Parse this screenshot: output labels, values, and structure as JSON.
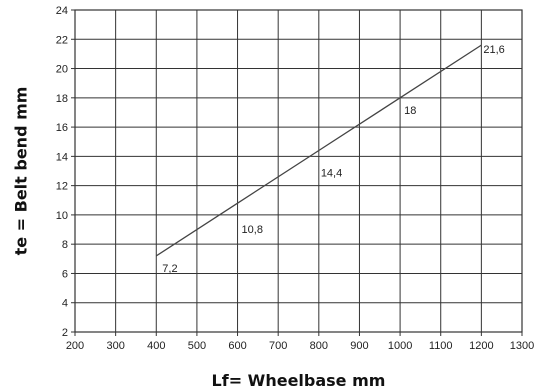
{
  "chart_data": {
    "type": "line",
    "title": "",
    "xlabel": "Lf= Wheelbase mm",
    "ylabel": "te = Belt bend mm",
    "xlim": [
      200,
      1300
    ],
    "ylim": [
      2,
      24
    ],
    "x_ticks": [
      "200",
      "300",
      "400",
      "500",
      "600",
      "700",
      "800",
      "900",
      "1000",
      "1100",
      "1200",
      "1300"
    ],
    "y_ticks": [
      "2",
      "4",
      "6",
      "8",
      "10",
      "12",
      "14",
      "16",
      "18",
      "20",
      "22",
      "24"
    ],
    "grid": true,
    "legend": "none",
    "series": [
      {
        "x": [
          400,
          600,
          800,
          1000,
          1200
        ],
        "y": [
          7.2,
          10.8,
          14.4,
          18,
          21.6
        ],
        "labels": [
          "7,2",
          "10,8",
          "14,4",
          "18",
          "21,6"
        ]
      }
    ],
    "colors": {
      "line": "#444444",
      "grid": "#333333",
      "frame": "#333333"
    }
  }
}
